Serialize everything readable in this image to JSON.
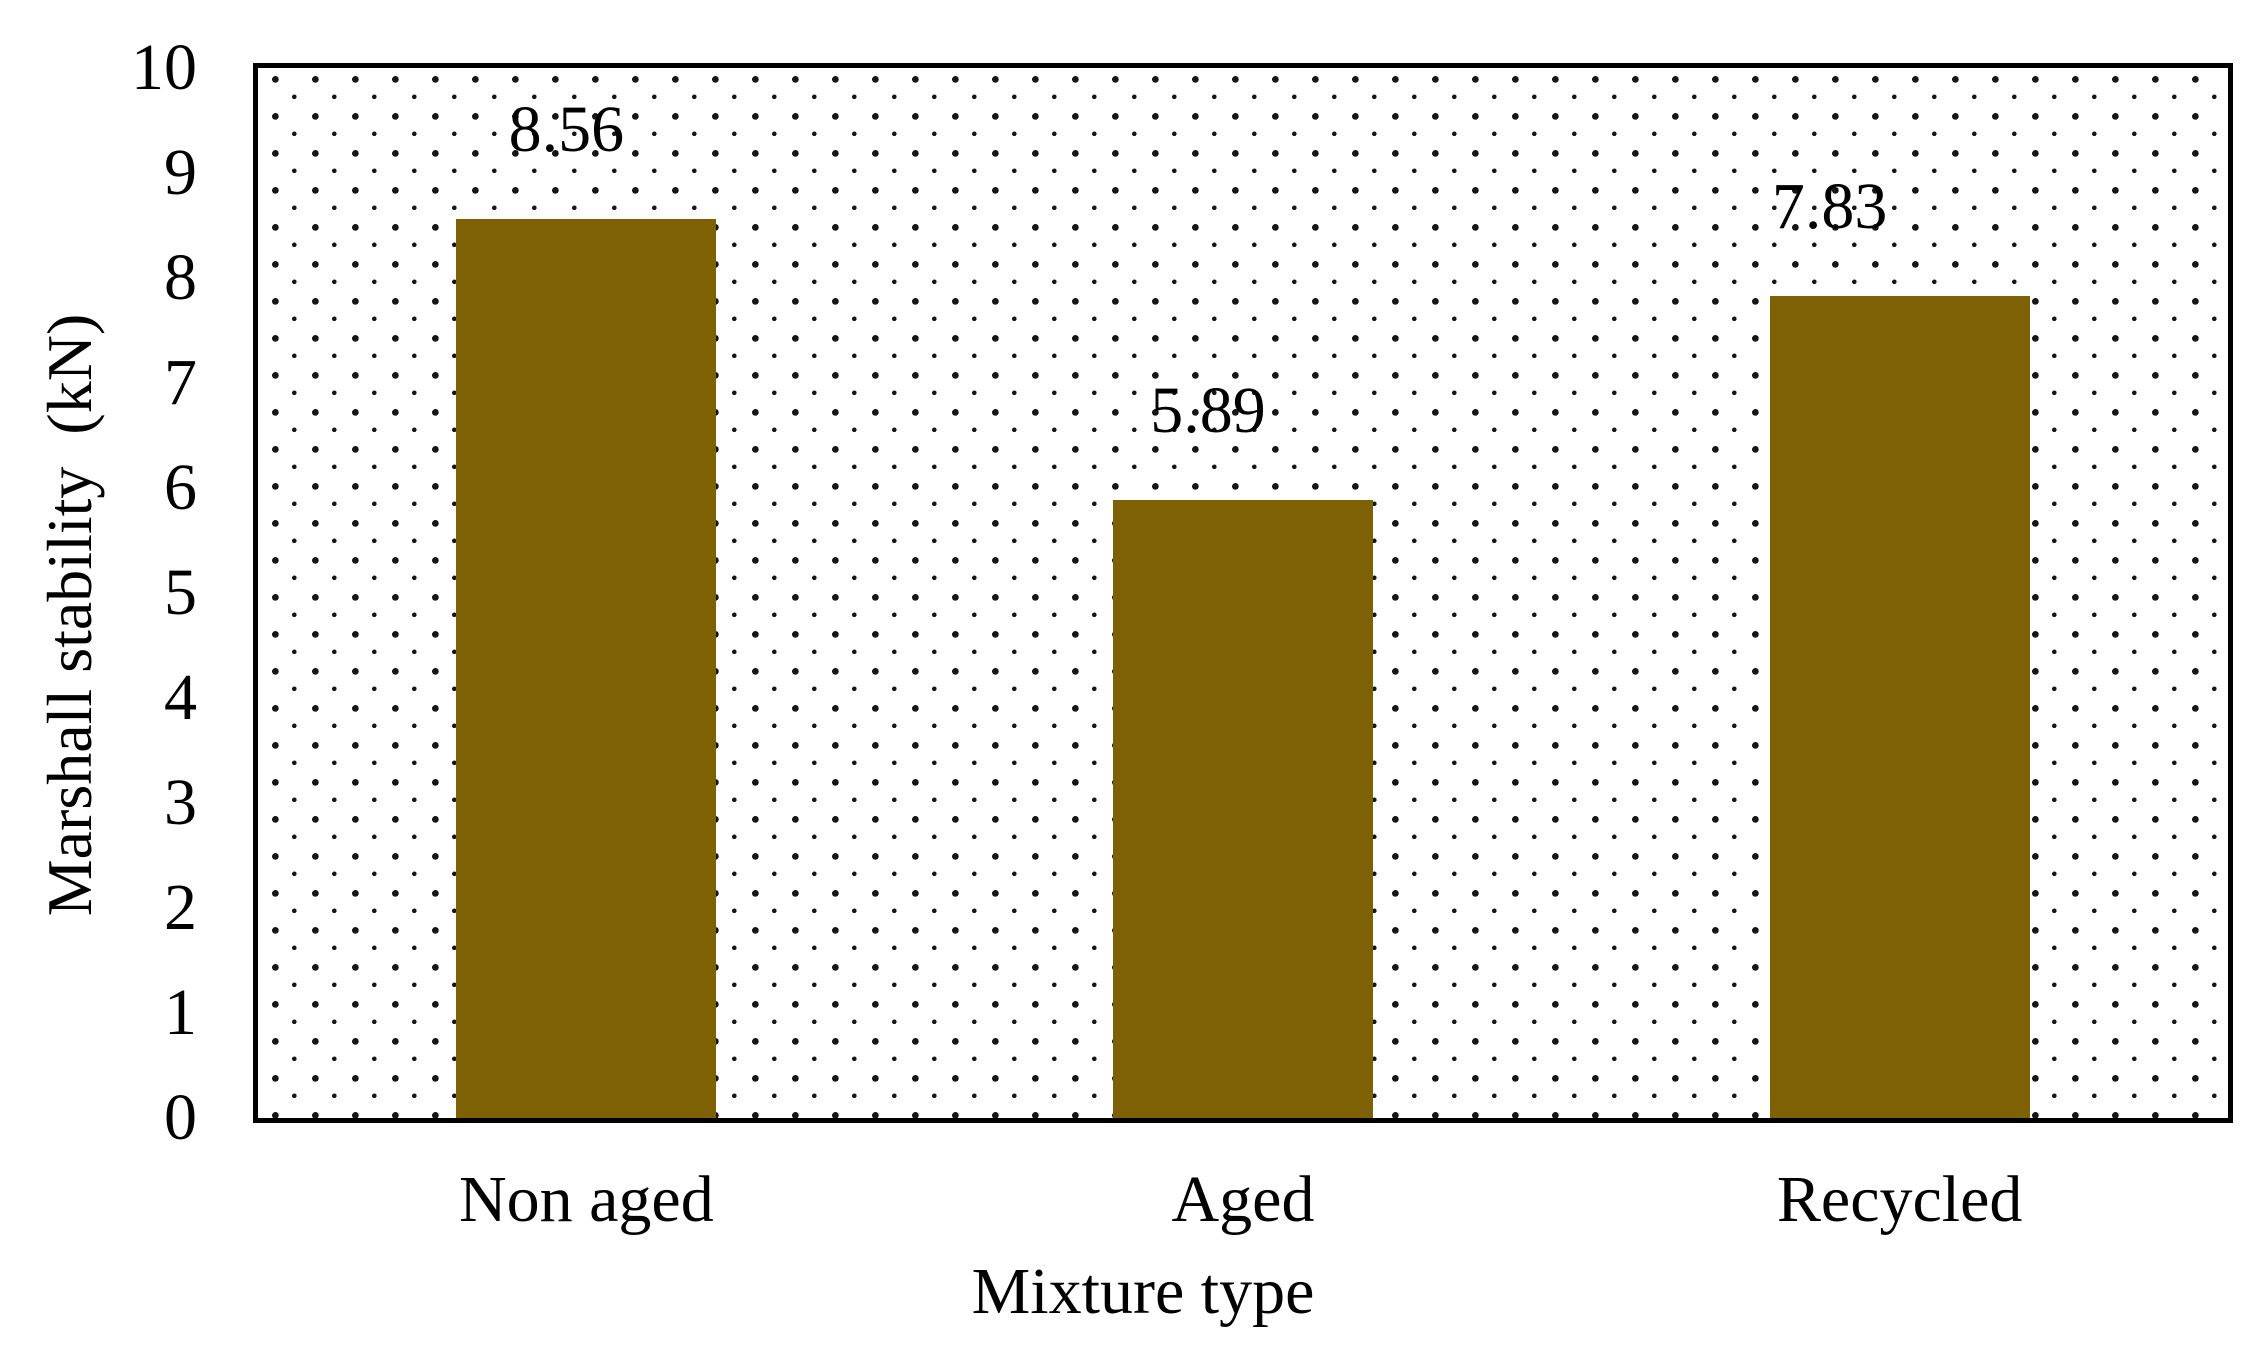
{
  "chart_data": {
    "type": "bar",
    "title": "",
    "categories": [
      "Non aged",
      "Aged",
      "Recycled"
    ],
    "values": [
      8.56,
      5.89,
      7.83
    ],
    "bar_labels": [
      "8.56",
      "5.89",
      "7.83"
    ],
    "xlabel": "Mixture type",
    "ylabel": "Marshall stability  (kN)",
    "ylim": [
      0,
      10
    ],
    "yticks": [
      0,
      1,
      2,
      3,
      4,
      5,
      6,
      7,
      8,
      9,
      10
    ],
    "grid": false,
    "legend": false,
    "bar_color": "#7D6104",
    "plot_background": "black-dot-pattern-on-white",
    "dot_color": "#161616",
    "frame_color": "#000000"
  }
}
